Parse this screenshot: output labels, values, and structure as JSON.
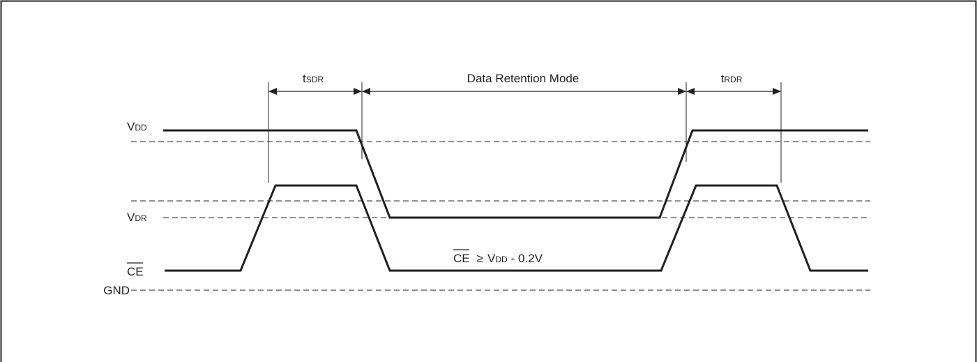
{
  "diagram": {
    "colors": {
      "stroke": "#231f20",
      "background": "#ffffff"
    },
    "labels": {
      "vdd_main": "V",
      "vdd_sub": "DD",
      "vdr_main": "V",
      "vdr_sub": "DR",
      "ce": "CE",
      "gnd": "GND",
      "tsdr_main": "t",
      "tsdr_sub": "SDR",
      "trdr_main": "t",
      "trdr_sub": "RDR",
      "mode": "Data Retention Mode",
      "cond_ce": "CE",
      "cond_ge": "≥",
      "cond_v": "V",
      "cond_sub": "DD",
      "cond_tail": "- 0.2V"
    }
  }
}
